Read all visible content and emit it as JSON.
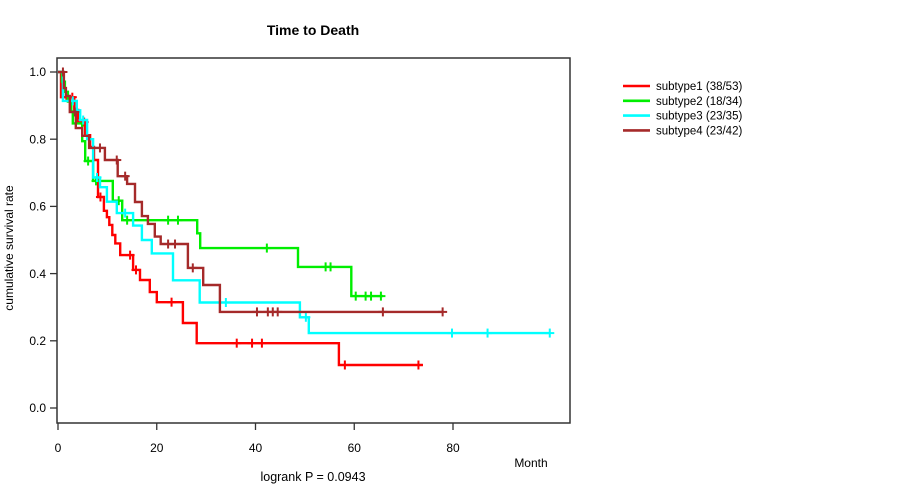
{
  "chart_data": {
    "type": "line",
    "subtype": "kaplan-meier-step-curves",
    "title": "Time to Death",
    "xlabel": "Month",
    "ylabel": "cumulative survival rate",
    "annotation": "logrank P = 0.0943",
    "xlim": [
      0,
      103.7
    ],
    "ylim": [
      0.0,
      1.0
    ],
    "x_ticks": [
      0,
      20,
      40,
      60,
      80
    ],
    "x_tick_labels": [
      "0",
      "20",
      "40",
      "60",
      "80"
    ],
    "y_ticks": [
      0.0,
      0.2,
      0.4,
      0.6,
      0.8,
      1.0
    ],
    "y_tick_labels": [
      "0.0",
      "0.2",
      "0.4",
      "0.6",
      "0.8",
      "1.0"
    ],
    "grid": false,
    "legend_position": "right-outside",
    "censor_mark": "plus",
    "series": [
      {
        "name": "subtype1",
        "label": "subtype1 (38/53)",
        "events": 38,
        "total": 53,
        "color": "#ff0000",
        "end_time": 73.9,
        "steps": [
          [
            0,
            1.0
          ],
          [
            0.6,
            0.925
          ],
          [
            3.3,
            0.887
          ],
          [
            4.1,
            0.851
          ],
          [
            5.5,
            0.812
          ],
          [
            6.5,
            0.777
          ],
          [
            7.3,
            0.738
          ],
          [
            8.1,
            0.628
          ],
          [
            9.3,
            0.587
          ],
          [
            9.9,
            0.568
          ],
          [
            10.4,
            0.545
          ],
          [
            11.0,
            0.515
          ],
          [
            11.6,
            0.49
          ],
          [
            12.6,
            0.455
          ],
          [
            15.2,
            0.411
          ],
          [
            16.6,
            0.381
          ],
          [
            18.6,
            0.345
          ],
          [
            20.0,
            0.315
          ],
          [
            25.3,
            0.253
          ],
          [
            28.1,
            0.193
          ],
          [
            56.9,
            0.128
          ]
        ],
        "censors": [
          [
            1.7,
            0.925
          ],
          [
            2.9,
            0.925
          ],
          [
            5.3,
            0.851
          ],
          [
            8.6,
            0.628
          ],
          [
            14.6,
            0.455
          ],
          [
            15.8,
            0.411
          ],
          [
            23.0,
            0.315
          ],
          [
            36.2,
            0.193
          ],
          [
            39.3,
            0.193
          ],
          [
            41.3,
            0.193
          ],
          [
            58.1,
            0.128
          ],
          [
            73.0,
            0.128
          ]
        ]
      },
      {
        "name": "subtype2",
        "label": "subtype2 (18/34)",
        "events": 18,
        "total": 34,
        "color": "#00ee00",
        "end_time": 65.8,
        "steps": [
          [
            0,
            1.0
          ],
          [
            0.8,
            0.971
          ],
          [
            1.4,
            0.941
          ],
          [
            2.0,
            0.912
          ],
          [
            2.7,
            0.882
          ],
          [
            3.0,
            0.847
          ],
          [
            4.9,
            0.794
          ],
          [
            5.5,
            0.735
          ],
          [
            7.1,
            0.676
          ],
          [
            11.1,
            0.617
          ],
          [
            13.0,
            0.559
          ],
          [
            28.2,
            0.52
          ],
          [
            28.8,
            0.476
          ],
          [
            48.6,
            0.42
          ],
          [
            59.4,
            0.333
          ]
        ],
        "censors": [
          [
            6.1,
            0.735
          ],
          [
            7.7,
            0.676
          ],
          [
            12.3,
            0.617
          ],
          [
            14.0,
            0.559
          ],
          [
            22.3,
            0.559
          ],
          [
            24.3,
            0.559
          ],
          [
            42.3,
            0.476
          ],
          [
            54.2,
            0.42
          ],
          [
            55.2,
            0.42
          ],
          [
            60.3,
            0.333
          ],
          [
            62.3,
            0.333
          ],
          [
            63.4,
            0.333
          ],
          [
            65.4,
            0.333
          ]
        ]
      },
      {
        "name": "subtype3",
        "label": "subtype3 (23/35)",
        "events": 23,
        "total": 35,
        "color": "#00ffff",
        "end_time": 99.6,
        "steps": [
          [
            0,
            1.0
          ],
          [
            1.0,
            0.914
          ],
          [
            3.8,
            0.886
          ],
          [
            4.5,
            0.857
          ],
          [
            5.9,
            0.8
          ],
          [
            7.1,
            0.686
          ],
          [
            8.5,
            0.657
          ],
          [
            9.9,
            0.614
          ],
          [
            11.9,
            0.58
          ],
          [
            15.2,
            0.543
          ],
          [
            17.0,
            0.5
          ],
          [
            19.0,
            0.46
          ],
          [
            23.3,
            0.38
          ],
          [
            28.7,
            0.314
          ],
          [
            49.0,
            0.27
          ],
          [
            50.8,
            0.223
          ]
        ],
        "censors": [
          [
            3.0,
            0.914
          ],
          [
            5.1,
            0.857
          ],
          [
            7.9,
            0.686
          ],
          [
            13.6,
            0.58
          ],
          [
            34.0,
            0.314
          ],
          [
            50.2,
            0.27
          ],
          [
            79.8,
            0.223
          ],
          [
            87.0,
            0.223
          ],
          [
            99.6,
            0.223
          ]
        ]
      },
      {
        "name": "subtype4",
        "label": "subtype4 (23/42)",
        "events": 23,
        "total": 42,
        "color": "#a52a2a",
        "end_time": 77.9,
        "steps": [
          [
            0,
            1.0
          ],
          [
            1.2,
            0.952
          ],
          [
            1.6,
            0.929
          ],
          [
            2.4,
            0.881
          ],
          [
            3.6,
            0.833
          ],
          [
            4.9,
            0.81
          ],
          [
            6.3,
            0.774
          ],
          [
            9.5,
            0.738
          ],
          [
            12.1,
            0.69
          ],
          [
            14.0,
            0.667
          ],
          [
            15.6,
            0.613
          ],
          [
            17.0,
            0.571
          ],
          [
            18.2,
            0.548
          ],
          [
            19.6,
            0.51
          ],
          [
            20.8,
            0.488
          ],
          [
            26.3,
            0.417
          ],
          [
            29.4,
            0.366
          ],
          [
            32.8,
            0.286
          ]
        ],
        "censors": [
          [
            1.0,
            1.0
          ],
          [
            3.4,
            0.881
          ],
          [
            8.5,
            0.774
          ],
          [
            11.9,
            0.738
          ],
          [
            13.6,
            0.69
          ],
          [
            22.3,
            0.488
          ],
          [
            23.7,
            0.488
          ],
          [
            27.3,
            0.417
          ],
          [
            40.3,
            0.286
          ],
          [
            42.5,
            0.286
          ],
          [
            43.5,
            0.286
          ],
          [
            44.5,
            0.286
          ],
          [
            65.8,
            0.286
          ],
          [
            77.9,
            0.286
          ]
        ]
      }
    ]
  }
}
